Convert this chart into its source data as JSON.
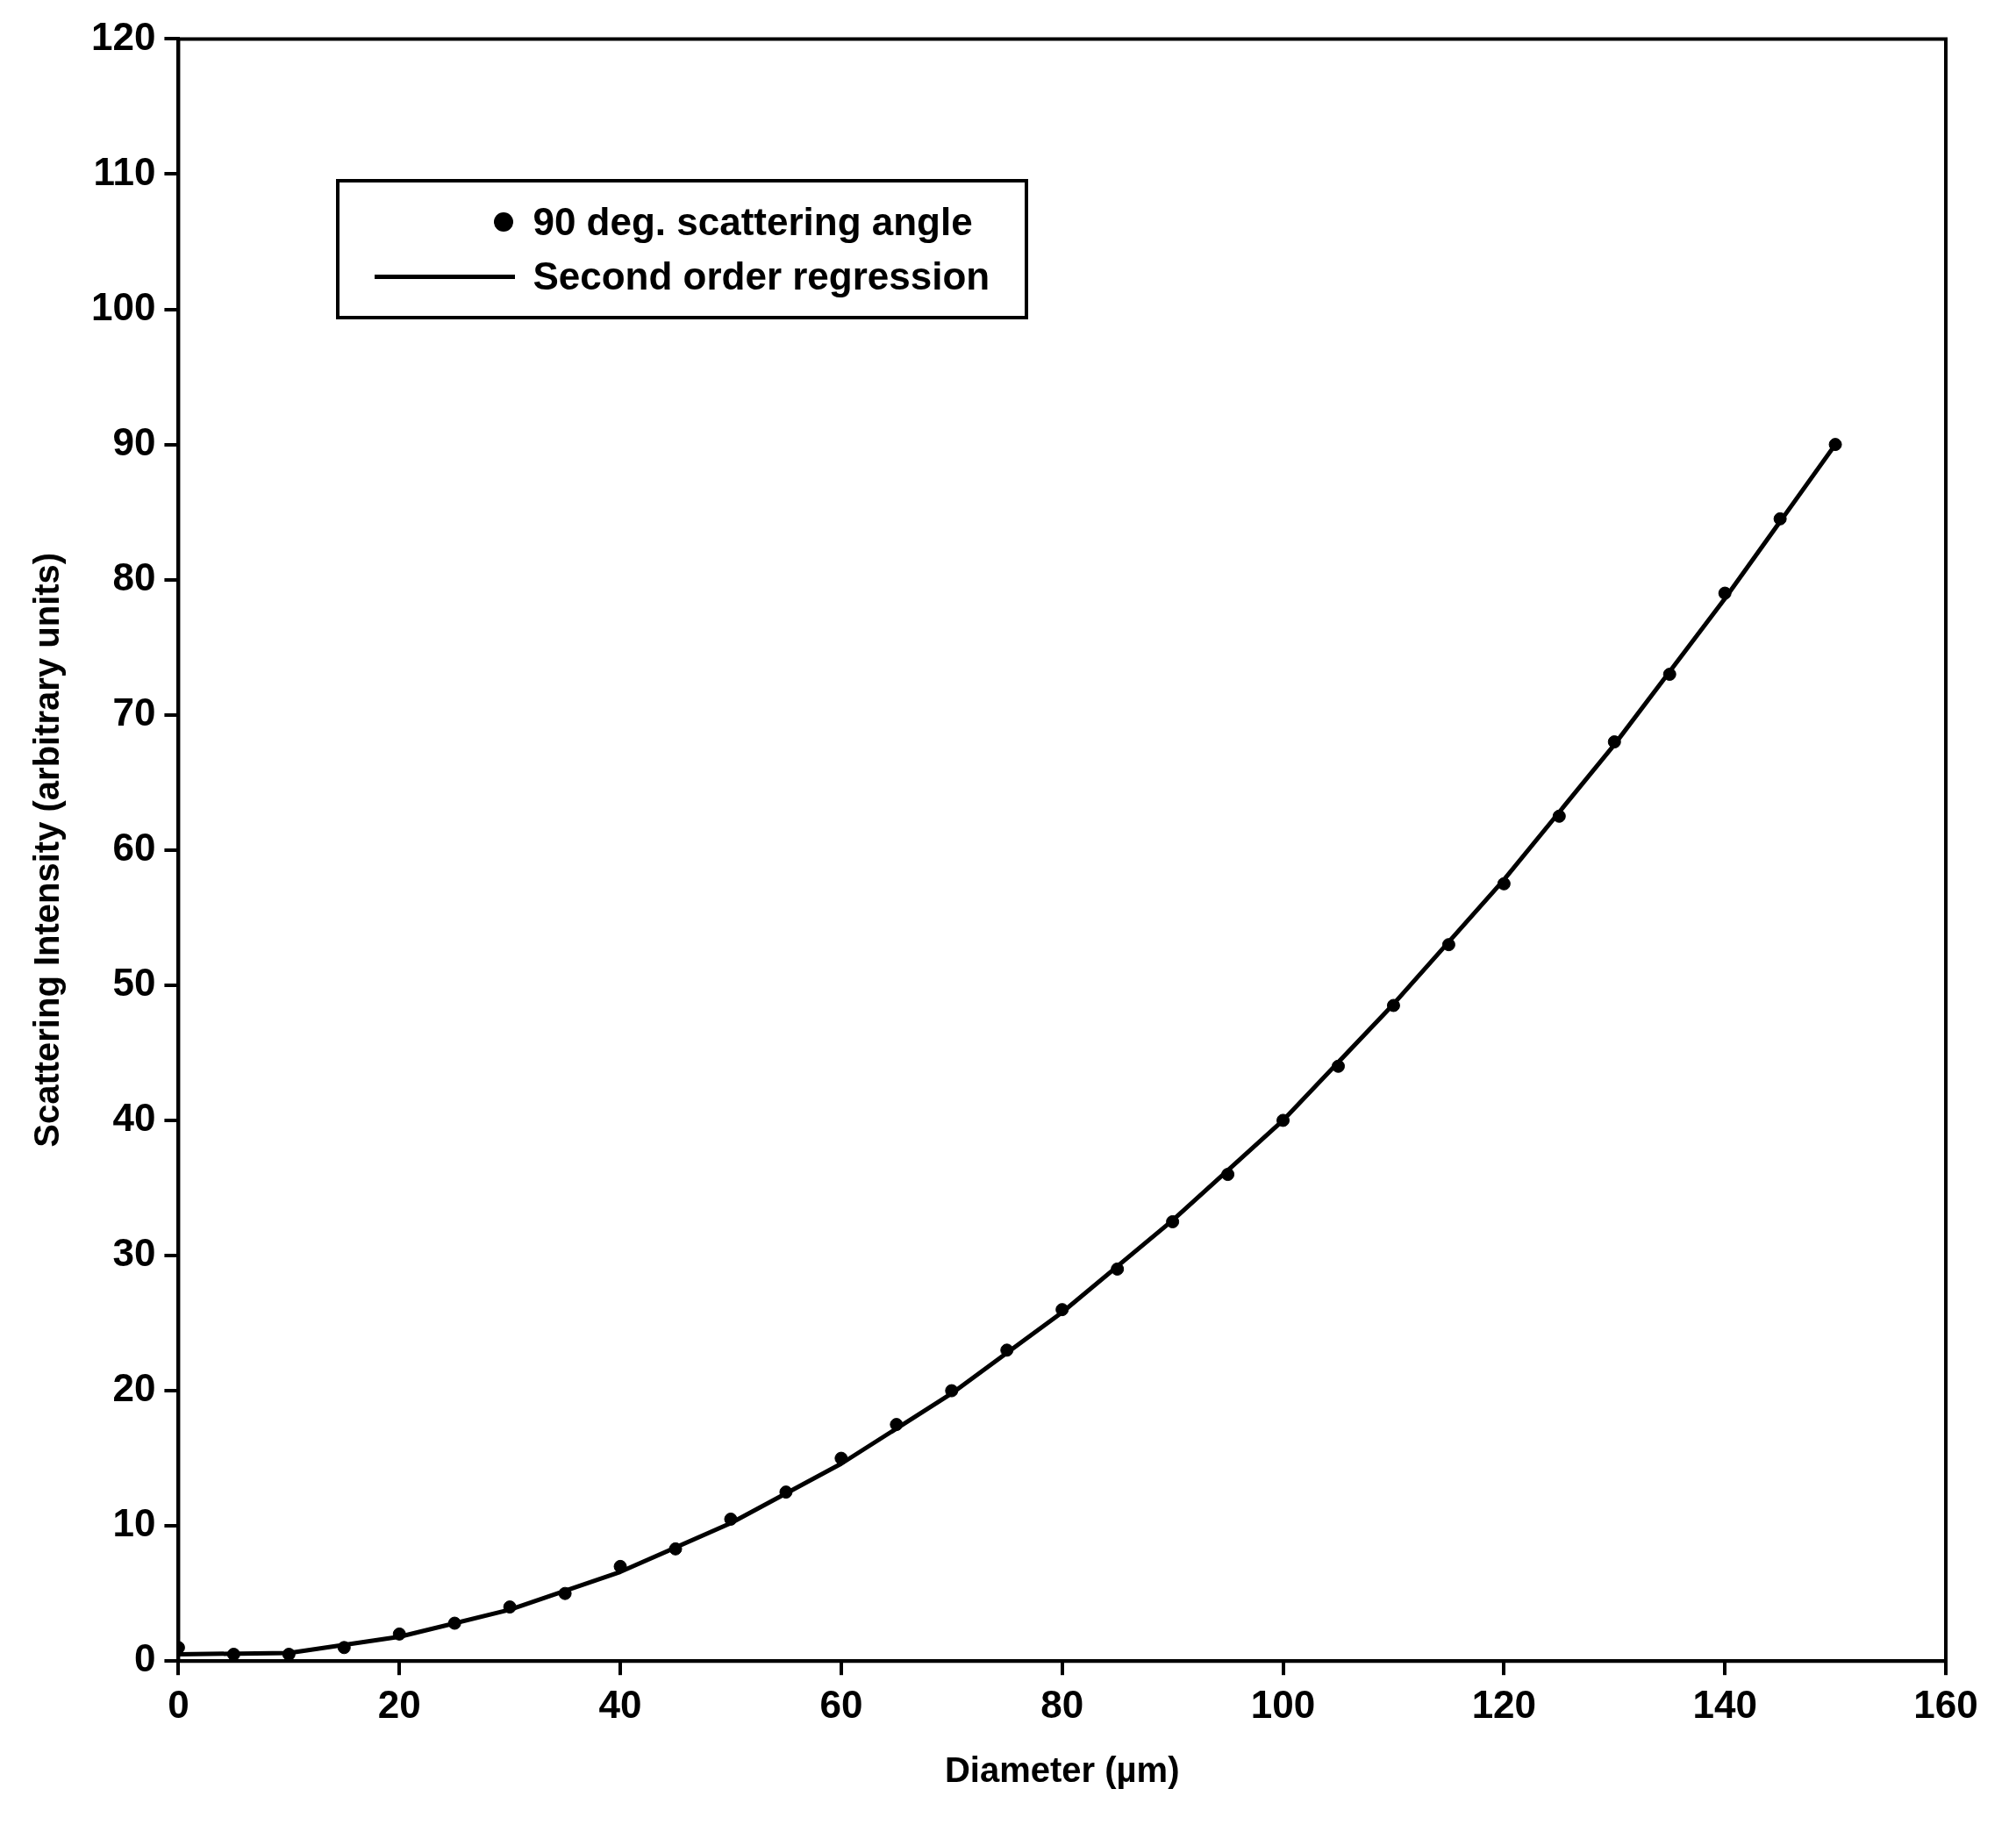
{
  "chart_data": {
    "type": "scatter",
    "xlabel": "Diameter (µm)",
    "ylabel": "Scattering Intensity (arbitrary units)",
    "xlim": [
      0,
      160
    ],
    "xticks": [
      0,
      20,
      40,
      60,
      80,
      100,
      120,
      140,
      160
    ],
    "ylim": [
      0,
      120
    ],
    "yticks": [
      0,
      10,
      20,
      30,
      40,
      50,
      60,
      70,
      80,
      90,
      100,
      110,
      120
    ],
    "grid": false,
    "legend": "top left",
    "series": [
      {
        "name": "90 deg. scattering angle",
        "type": "scatter",
        "color": "#000000",
        "marker": "circle",
        "x": [
          0,
          5,
          10,
          15,
          20,
          25,
          30,
          35,
          40,
          45,
          50,
          55,
          60,
          65,
          70,
          75,
          80,
          85,
          90,
          95,
          100,
          105,
          110,
          115,
          120,
          125,
          130,
          135,
          140,
          145,
          150
        ],
        "values": [
          1,
          0.5,
          0.5,
          1,
          2,
          2.8,
          4,
          5,
          7,
          8.3,
          10.5,
          12.5,
          15,
          17.5,
          20,
          23,
          26,
          29,
          32.5,
          36,
          40,
          44,
          48.5,
          53,
          57.5,
          62.5,
          68,
          73,
          79,
          84.5,
          90
        ]
      },
      {
        "name": "Second order regression",
        "type": "line",
        "color": "#000000",
        "line_style": "solid",
        "marker": "none",
        "x": [
          0,
          10,
          20,
          30,
          40,
          50,
          60,
          70,
          80,
          90,
          100,
          110,
          120,
          130,
          140,
          150
        ],
        "values": [
          0.5,
          0.6,
          1.8,
          3.8,
          6.6,
          10.2,
          14.6,
          19.8,
          25.8,
          32.6,
          40,
          48.6,
          57.8,
          67.8,
          78.6,
          90
        ]
      }
    ]
  }
}
